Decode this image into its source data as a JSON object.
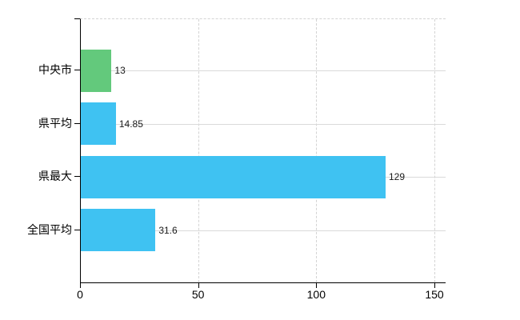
{
  "chart_data": {
    "type": "bar",
    "orientation": "horizontal",
    "title": "",
    "xlabel": "",
    "ylabel": "",
    "categories": [
      "中央市",
      "県平均",
      "県最大",
      "全国平均"
    ],
    "values": [
      13,
      14.85,
      129,
      31.6
    ],
    "value_labels": [
      "13",
      "14.85",
      "129",
      "31.6"
    ],
    "bar_colors": [
      "#63c97c",
      "#3fc2f2",
      "#3fc2f2",
      "#3fc2f2"
    ],
    "x_ticks": [
      0,
      50,
      100,
      150
    ],
    "x_tick_labels": [
      "0",
      "50",
      "100",
      "150"
    ],
    "xlim": [
      0,
      154.7
    ],
    "grid": true,
    "legend": "none",
    "colors": {
      "accent_green": "#63c97c",
      "accent_blue": "#3fc2f2",
      "gridline": "#d8d8d8",
      "axis": "#000000",
      "background": "#ffffff",
      "text": "#000000"
    }
  }
}
